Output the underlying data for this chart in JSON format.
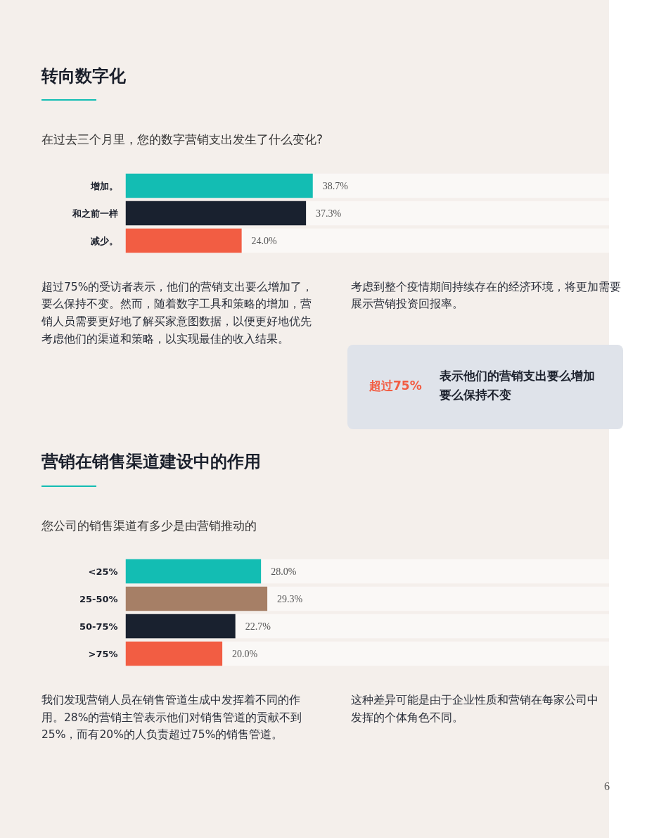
{
  "chart_data": [
    {
      "type": "bar",
      "orientation": "horizontal",
      "title": "转向数字化",
      "subtitle": "在过去三个月里，您的数字营销支出发生了什么变化?",
      "categories": [
        "增加。",
        "和之前一样",
        "减少。"
      ],
      "values": [
        38.7,
        37.3,
        24.0
      ],
      "value_labels": [
        "38.7%",
        "37.3%",
        "24.0%"
      ],
      "colors": [
        "#13bdb3",
        "#19212f",
        "#f25d43"
      ],
      "xlim": [
        0,
        100
      ],
      "grid": false,
      "annotations": [
        "超过75%的受访者表示，他们的营销支出要么增加了，要么保持不变。然而，随着数字工具和策略的增加，营销人员需要更好地了解买家意图数据，以便更好地优先考虑他们的渠道和策略，以实现最佳的收入结果。",
        "考虑到整个疫情期间持续存在的经济环境，将更加需要展示营销投资回报率。",
        "超过75%",
        "表示他们的营销支出要么增加要么保持不变"
      ]
    },
    {
      "type": "bar",
      "orientation": "horizontal",
      "title": "营销在销售渠道建设中的作用",
      "subtitle": "您公司的销售渠道有多少是由营销推动的",
      "categories": [
        "<25%",
        "25-50%",
        "50-75%",
        ">75%"
      ],
      "values": [
        28.0,
        29.3,
        22.7,
        20.0
      ],
      "value_labels": [
        "28.0%",
        "29.3%",
        "22.7%",
        "20.0%"
      ],
      "colors": [
        "#13bdb3",
        "#a67f66",
        "#19212f",
        "#f25d43"
      ],
      "xlim": [
        0,
        100
      ],
      "grid": false,
      "annotations": [
        "我们发现营销人员在销售管道生成中发挥着不同的作用。28%的营销主管表示他们对销售管道的贡献不到25%，而有20%的人负责超过75%的销售管道。",
        "这种差异可能是由于企业性质和营销在每家公司中发挥的个体角色不同。",
        "6"
      ]
    }
  ]
}
